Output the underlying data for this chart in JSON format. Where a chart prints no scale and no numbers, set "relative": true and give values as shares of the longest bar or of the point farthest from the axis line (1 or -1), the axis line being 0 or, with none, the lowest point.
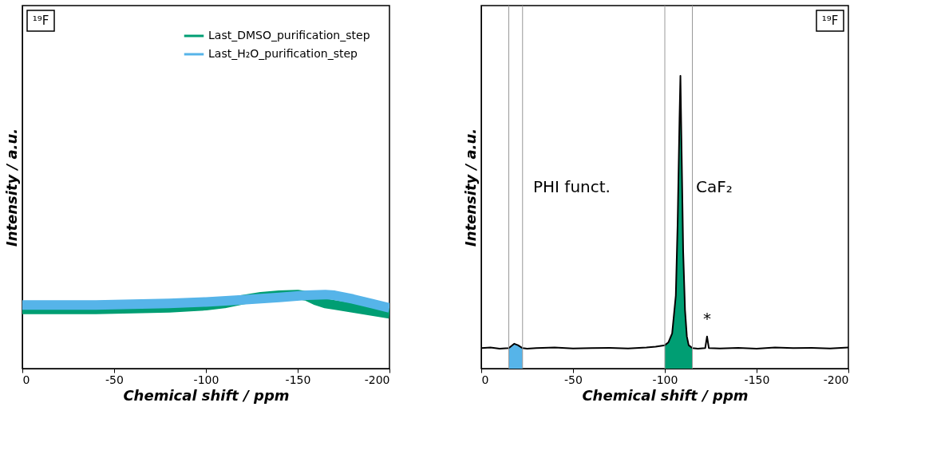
{
  "chart_data": [
    {
      "type": "line",
      "relative": true,
      "xlabel": "Chemical shift / ppm",
      "ylabel": "Intensity / a.u.",
      "xlim": [
        0,
        -200
      ],
      "xticks": [
        0,
        -50,
        -100,
        -150,
        -200
      ],
      "legend": "top right",
      "grid": false,
      "annotations": [
        "¹⁹F"
      ],
      "series": [
        {
          "name": "Last_DMSO_purification_step",
          "color": "#009e73",
          "x": [
            0,
            -20,
            -40,
            -60,
            -80,
            -100,
            -110,
            -120,
            -130,
            -140,
            -150,
            -155,
            -160,
            -165,
            -170,
            -180,
            -190,
            -200
          ],
          "values": [
            0.8,
            0.8,
            0.8,
            0.81,
            0.82,
            0.85,
            0.88,
            0.93,
            0.97,
            0.99,
            1.0,
            0.98,
            0.92,
            0.88,
            0.86,
            0.82,
            0.78,
            0.74
          ]
        },
        {
          "name": "Last_H₂O_purification_step",
          "color": "#56b4e9",
          "x": [
            0,
            -20,
            -40,
            -60,
            -80,
            -100,
            -120,
            -140,
            -155,
            -165,
            -170,
            -180,
            -190,
            -200
          ],
          "values": [
            0.86,
            0.86,
            0.86,
            0.87,
            0.88,
            0.9,
            0.93,
            0.96,
            0.99,
            1.0,
            0.99,
            0.94,
            0.88,
            0.82
          ]
        }
      ]
    },
    {
      "type": "line",
      "relative": true,
      "xlabel": "Chemical shift / ppm",
      "ylabel": "Intensity / a.u.",
      "xlim": [
        0,
        -200
      ],
      "xticks": [
        0,
        -50,
        -100,
        -150,
        -200
      ],
      "grid": false,
      "annotations": [
        "¹⁹F",
        "PHI funct.",
        "CaF₂",
        "*"
      ],
      "ref_lines": [
        {
          "axis": "x",
          "value": -15,
          "color": "#999999"
        },
        {
          "axis": "x",
          "value": -22.5,
          "color": "#999999"
        },
        {
          "axis": "x",
          "value": -100,
          "color": "#999999"
        },
        {
          "axis": "x",
          "value": -115,
          "color": "#999999"
        }
      ],
      "series": [
        {
          "type": "area",
          "color": "#56b4e9",
          "x": [
            -15,
            -18,
            -20,
            -22.5
          ],
          "values": [
            0.07,
            0.085,
            0.08,
            0.07
          ]
        },
        {
          "type": "area",
          "color": "#009e73",
          "x": [
            -100,
            -102,
            -104,
            -106,
            -107,
            -108,
            -108.5,
            -109,
            -110,
            -111,
            -112,
            -113,
            -115
          ],
          "values": [
            0.08,
            0.09,
            0.12,
            0.25,
            0.5,
            0.85,
            1.0,
            0.8,
            0.4,
            0.2,
            0.11,
            0.08,
            0.07
          ]
        },
        {
          "type": "line",
          "color": "#000000",
          "x": [
            0,
            -5,
            -10,
            -15,
            -18,
            -20,
            -22.5,
            -25,
            -30,
            -40,
            -50,
            -60,
            -70,
            -80,
            -90,
            -95,
            -100,
            -102,
            -104,
            -106,
            -107,
            -108,
            -108.5,
            -109,
            -110,
            -111,
            -112,
            -113,
            -115,
            -118,
            -122,
            -123,
            -124,
            -130,
            -140,
            -150,
            -160,
            -170,
            -180,
            -190,
            -200
          ],
          "values": [
            0.07,
            0.072,
            0.068,
            0.07,
            0.085,
            0.08,
            0.07,
            0.068,
            0.07,
            0.072,
            0.069,
            0.07,
            0.071,
            0.069,
            0.072,
            0.075,
            0.08,
            0.09,
            0.12,
            0.25,
            0.5,
            0.85,
            1.0,
            0.8,
            0.4,
            0.2,
            0.11,
            0.08,
            0.07,
            0.068,
            0.07,
            0.11,
            0.07,
            0.069,
            0.071,
            0.068,
            0.072,
            0.07,
            0.071,
            0.069,
            0.072
          ]
        }
      ]
    }
  ]
}
